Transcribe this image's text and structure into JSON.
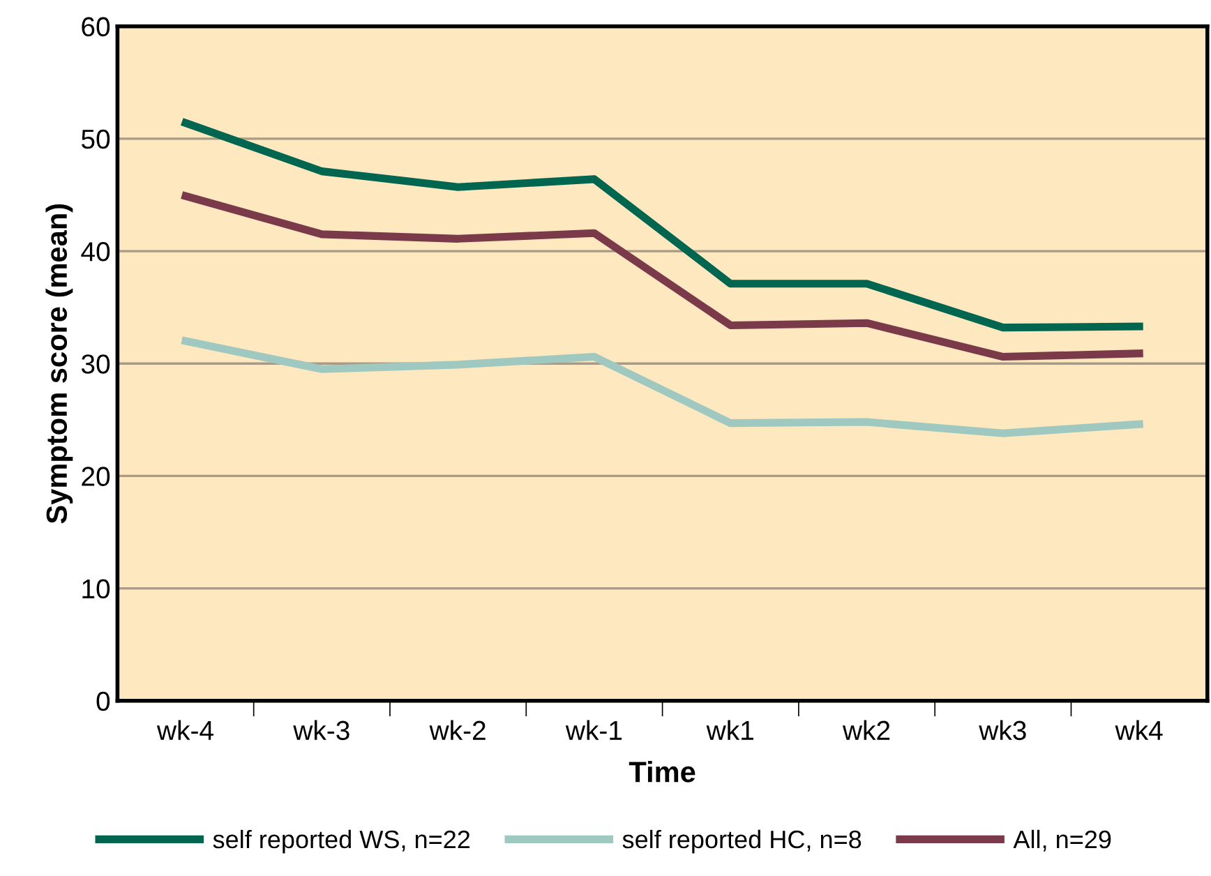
{
  "chart_data": {
    "type": "line",
    "xlabel": "Time",
    "ylabel": "Symptom score (mean)",
    "categories": [
      "wk-4",
      "wk-3",
      "wk-2",
      "wk-1",
      "wk1",
      "wk2",
      "wk3",
      "wk4"
    ],
    "series": [
      {
        "name": "self reported WS, n=22",
        "color": "#00664f",
        "values": [
          51.4,
          47.1,
          45.7,
          46.4,
          37.1,
          37.1,
          33.2,
          33.3
        ]
      },
      {
        "name": "self reported HC, n=8",
        "color": "#9fc9c0",
        "values": [
          32.0,
          29.5,
          29.9,
          30.6,
          24.7,
          24.8,
          23.8,
          24.6
        ]
      },
      {
        "name": "All, n=29",
        "color": "#7b3a4a",
        "values": [
          44.9,
          41.5,
          41.1,
          41.6,
          33.4,
          33.6,
          30.6,
          30.9
        ]
      }
    ],
    "ylim": [
      0,
      60
    ],
    "yticks": [
      0,
      10,
      20,
      30,
      40,
      50,
      60
    ],
    "grid": "y",
    "legend": "bottom",
    "marker": "none",
    "line_style": "solid"
  }
}
